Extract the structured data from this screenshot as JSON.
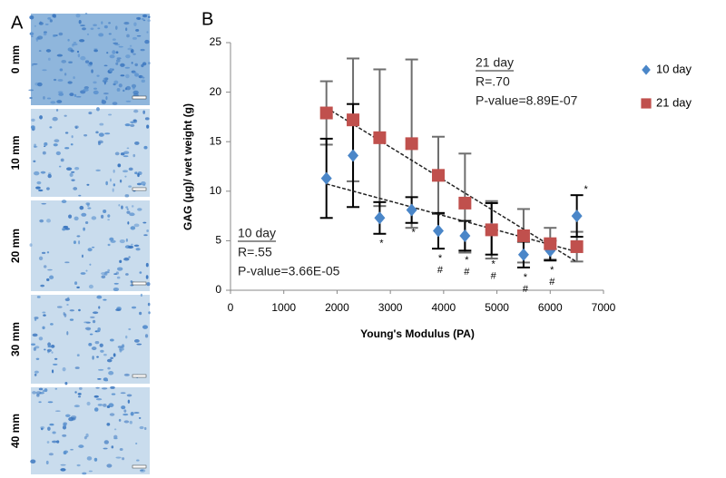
{
  "panel_a": {
    "label": "A",
    "images": [
      "0 mm",
      "10 mm",
      "20 mm",
      "30 mm",
      "40 mm"
    ]
  },
  "chart_data": {
    "type": "scatter",
    "panel_label": "B",
    "x_label": "Young's Modulus (PA)",
    "y_label": "GAG (μg)/ wet weight (g)",
    "x": [
      1800,
      2300,
      2800,
      3400,
      3900,
      4400,
      4900,
      5500,
      6000,
      6500
    ],
    "series": [
      {
        "name": "10 day",
        "color": "#4a86c8",
        "marker": "diamond",
        "error_color": "#000000",
        "trendline": true,
        "values": [
          11.3,
          13.6,
          7.3,
          8.1,
          6.0,
          5.5,
          6.2,
          3.6,
          4.0,
          7.5
        ],
        "errors": [
          4.0,
          5.2,
          1.6,
          1.3,
          1.8,
          1.5,
          2.6,
          1.3,
          1.0,
          2.1
        ],
        "annotations": [
          null,
          null,
          [
            "*"
          ],
          [
            "*"
          ],
          [
            "*",
            "#"
          ],
          [
            "*",
            "#"
          ],
          [
            "*",
            "#"
          ],
          [
            "*",
            "#"
          ],
          [
            "*",
            "#"
          ],
          [
            "*"
          ]
        ]
      },
      {
        "name": "21 day",
        "color": "#c0504d",
        "marker": "square",
        "error_color": "#6e6e6e",
        "trendline": true,
        "values": [
          17.9,
          17.2,
          15.4,
          14.8,
          11.6,
          8.8,
          6.1,
          5.5,
          4.7,
          4.4
        ],
        "errors": [
          3.2,
          6.2,
          6.9,
          8.5,
          3.9,
          5.0,
          2.9,
          2.7,
          1.6,
          1.5
        ]
      }
    ],
    "stat_boxes": [
      {
        "title": "21 day",
        "lines": [
          "R=.70",
          "P-value=8.89E-07"
        ]
      },
      {
        "title": "10 day",
        "lines": [
          "R=.55",
          "P-value=3.66E-05"
        ]
      }
    ],
    "xlim": [
      0,
      7000
    ],
    "xticks": [
      0,
      1000,
      2000,
      3000,
      4000,
      5000,
      6000,
      7000
    ],
    "ylim": [
      0,
      25
    ],
    "yticks": [
      0,
      5,
      10,
      15,
      20,
      25
    ],
    "grid": false,
    "legend": "top-right"
  }
}
